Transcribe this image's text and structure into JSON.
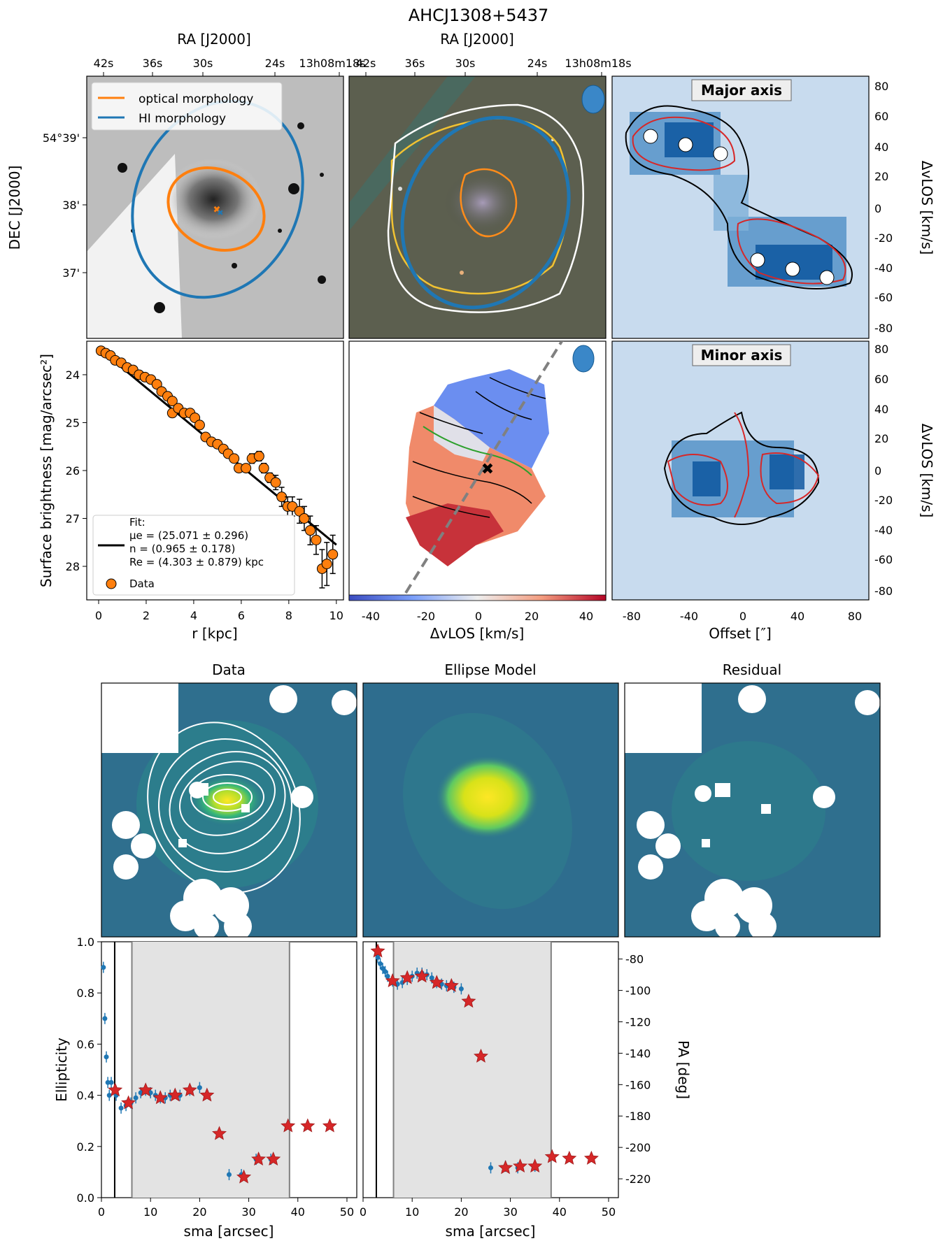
{
  "figure": {
    "title": "AHCJ1308+5437"
  },
  "panels": {
    "optical": {
      "top_axis_label": "RA [J2000]",
      "left_axis_label": "DEC [J2000]",
      "ra_ticks": [
        "42s",
        "36s",
        "30s",
        "24s",
        "13h08m18s"
      ],
      "dec_ticks": [
        "54°39'",
        "38'",
        "37'"
      ],
      "legend": [
        "optical morphology",
        "HI morphology"
      ],
      "colors": {
        "optical": "#ff7f0e",
        "hi": "#1f77b4"
      }
    },
    "rgb": {
      "top_axis_label": "RA [J2000]",
      "ra_ticks": [
        "42s",
        "36s",
        "30s",
        "24s",
        "13h08m18s"
      ]
    },
    "pv_major": {
      "title": "Major axis",
      "ylabel": "ΔvLOS [km/s]",
      "yticks": [
        "80",
        "60",
        "40",
        "20",
        "0",
        "-20",
        "-40",
        "-60",
        "-80"
      ]
    },
    "pv_minor": {
      "title": "Minor axis",
      "ylabel": "ΔvLOS [km/s]",
      "xlabel": "Offset [″]",
      "xticks": [
        "-80",
        "-40",
        "0",
        "40",
        "80"
      ],
      "yticks": [
        "80",
        "60",
        "40",
        "20",
        "0",
        "-20",
        "-40",
        "-60",
        "-80"
      ]
    },
    "velocity_field": {
      "cbar_label": "ΔvLOS [km/s]",
      "cbar_ticks": [
        "-40",
        "-20",
        "0",
        "20",
        "40"
      ]
    },
    "image_titles": [
      "Data",
      "Ellipse Model",
      "Residual"
    ]
  },
  "chart_data": [
    {
      "type": "scatter",
      "name": "surface-brightness-profile",
      "xlabel": "r [kpc]",
      "ylabel": "Surface brightness [mag/arcsec²]",
      "xlim": [
        -0.5,
        10.3
      ],
      "ylim": [
        28.7,
        23.3
      ],
      "xticks": [
        "0",
        "2",
        "4",
        "6",
        "8",
        "10"
      ],
      "yticks": [
        "24",
        "25",
        "26",
        "27",
        "28"
      ],
      "legend": {
        "fit_label": "Fit:",
        "fit_lines": [
          "μe = (25.071 ± 0.296)",
          "n = (0.965 ± 0.178)",
          "Re = (4.303 ± 0.879) kpc"
        ],
        "data_label": "Data",
        "placement": "lower-left"
      },
      "points": [
        [
          0.1,
          23.5,
          0.05
        ],
        [
          0.3,
          23.55,
          0.05
        ],
        [
          0.5,
          23.6,
          0.05
        ],
        [
          0.7,
          23.7,
          0.05
        ],
        [
          0.95,
          23.75,
          0.05
        ],
        [
          1.2,
          23.85,
          0.05
        ],
        [
          1.45,
          23.9,
          0.05
        ],
        [
          1.7,
          24.0,
          0.05
        ],
        [
          1.95,
          24.05,
          0.05
        ],
        [
          2.2,
          24.1,
          0.05
        ],
        [
          2.45,
          24.2,
          0.05
        ],
        [
          2.65,
          24.35,
          0.05
        ],
        [
          2.9,
          24.45,
          0.05
        ],
        [
          3.1,
          24.55,
          0.05
        ],
        [
          3.1,
          24.8,
          0.05
        ],
        [
          3.35,
          24.7,
          0.05
        ],
        [
          3.6,
          24.8,
          0.05
        ],
        [
          3.85,
          24.8,
          0.05
        ],
        [
          4.05,
          24.9,
          0.05
        ],
        [
          4.25,
          25.05,
          0.05
        ],
        [
          4.5,
          25.3,
          0.05
        ],
        [
          4.75,
          25.4,
          0.05
        ],
        [
          5.0,
          25.45,
          0.05
        ],
        [
          5.25,
          25.55,
          0.05
        ],
        [
          5.45,
          25.65,
          0.07
        ],
        [
          5.7,
          25.75,
          0.07
        ],
        [
          5.9,
          25.95,
          0.07
        ],
        [
          6.2,
          25.95,
          0.07
        ],
        [
          6.45,
          25.75,
          0.1
        ],
        [
          6.75,
          25.7,
          0.1
        ],
        [
          6.95,
          25.95,
          0.1
        ],
        [
          7.2,
          26.15,
          0.1
        ],
        [
          7.45,
          26.25,
          0.15
        ],
        [
          7.7,
          26.55,
          0.2
        ],
        [
          7.95,
          26.75,
          0.2
        ],
        [
          8.15,
          26.75,
          0.2
        ],
        [
          8.45,
          26.85,
          0.25
        ],
        [
          8.65,
          27.0,
          0.25
        ],
        [
          8.9,
          27.25,
          0.3
        ],
        [
          9.15,
          27.45,
          0.3
        ],
        [
          9.4,
          28.05,
          0.4
        ],
        [
          9.6,
          27.95,
          0.45
        ],
        [
          9.85,
          27.75,
          0.4
        ]
      ],
      "fit_line": [
        [
          0.0,
          23.45
        ],
        [
          10.0,
          27.55
        ]
      ]
    },
    {
      "type": "scatter",
      "name": "ellipticity-profile",
      "xlabel": "sma [arcsec]",
      "ylabel": "Ellipticity",
      "xlim": [
        0,
        52
      ],
      "ylim": [
        0.0,
        1.0
      ],
      "xticks": [
        "0",
        "10",
        "20",
        "30",
        "40",
        "50"
      ],
      "yticks": [
        "0.0",
        "0.2",
        "0.4",
        "0.6",
        "0.8",
        "1.0"
      ],
      "vlines": [
        2.7,
        6.2,
        38.3
      ],
      "shaded_range": [
        6.2,
        38.3
      ],
      "blue_points": [
        [
          0.4,
          0.9
        ],
        [
          0.7,
          0.7
        ],
        [
          1.0,
          0.55
        ],
        [
          1.3,
          0.45
        ],
        [
          1.6,
          0.4
        ],
        [
          2.0,
          0.45
        ],
        [
          3.0,
          0.4
        ],
        [
          4.0,
          0.35
        ],
        [
          5.0,
          0.36
        ],
        [
          6.0,
          0.37
        ],
        [
          7.0,
          0.39
        ],
        [
          8.0,
          0.41
        ],
        [
          9.0,
          0.42
        ],
        [
          10.0,
          0.41
        ],
        [
          11.0,
          0.4
        ],
        [
          12.0,
          0.39
        ],
        [
          13.0,
          0.39
        ],
        [
          14.0,
          0.4
        ],
        [
          16.0,
          0.4
        ],
        [
          18.0,
          0.42
        ],
        [
          20.0,
          0.43
        ],
        [
          26.0,
          0.09
        ],
        [
          28.5,
          0.09
        ],
        [
          31.5,
          0.15
        ],
        [
          34.5,
          0.15
        ]
      ],
      "star_points": [
        [
          2.8,
          0.42
        ],
        [
          5.5,
          0.37
        ],
        [
          9.0,
          0.42
        ],
        [
          12.0,
          0.39
        ],
        [
          15.0,
          0.4
        ],
        [
          18.0,
          0.42
        ],
        [
          21.5,
          0.4
        ],
        [
          24.0,
          0.25
        ],
        [
          29.0,
          0.08
        ],
        [
          32.0,
          0.15
        ],
        [
          35.0,
          0.15
        ],
        [
          38.0,
          0.28
        ],
        [
          42.0,
          0.28
        ],
        [
          46.5,
          0.28
        ]
      ]
    },
    {
      "type": "scatter",
      "name": "position-angle-profile",
      "xlabel": "sma [arcsec]",
      "ylabel": "PA [deg]",
      "xlim": [
        0,
        52
      ],
      "ylim": [
        -232,
        -69
      ],
      "xticks": [
        "0",
        "10",
        "20",
        "30",
        "40",
        "50"
      ],
      "yticks": [
        "-80",
        "-100",
        "-120",
        "-140",
        "-160",
        "-180",
        "-200",
        "-220"
      ],
      "vlines": [
        2.7,
        6.2,
        38.3
      ],
      "shaded_range": [
        6.2,
        38.3
      ],
      "blue_points": [
        [
          3.0,
          -79
        ],
        [
          3.5,
          -83
        ],
        [
          4.0,
          -86
        ],
        [
          4.5,
          -88
        ],
        [
          5.0,
          -91
        ],
        [
          6.0,
          -94
        ],
        [
          7.0,
          -96
        ],
        [
          8.0,
          -95
        ],
        [
          9.0,
          -93
        ],
        [
          10.0,
          -91
        ],
        [
          11.0,
          -89
        ],
        [
          12.0,
          -89
        ],
        [
          13.0,
          -90
        ],
        [
          14.0,
          -92
        ],
        [
          15.0,
          -95
        ],
        [
          16.0,
          -96
        ],
        [
          17.0,
          -97
        ],
        [
          18.5,
          -98
        ],
        [
          20.0,
          -99
        ],
        [
          26.0,
          -213
        ],
        [
          29.0,
          -212
        ],
        [
          31.5,
          -213
        ],
        [
          35.0,
          -212
        ]
      ],
      "star_points": [
        [
          3.0,
          -75
        ],
        [
          6.0,
          -94
        ],
        [
          9.0,
          -92
        ],
        [
          12.0,
          -91
        ],
        [
          15.0,
          -95
        ],
        [
          18.0,
          -97
        ],
        [
          21.5,
          -107
        ],
        [
          24.0,
          -142
        ],
        [
          29.0,
          -213
        ],
        [
          32.0,
          -212
        ],
        [
          35.0,
          -212
        ],
        [
          38.5,
          -206
        ],
        [
          42.0,
          -207
        ],
        [
          46.5,
          -207
        ]
      ]
    }
  ]
}
